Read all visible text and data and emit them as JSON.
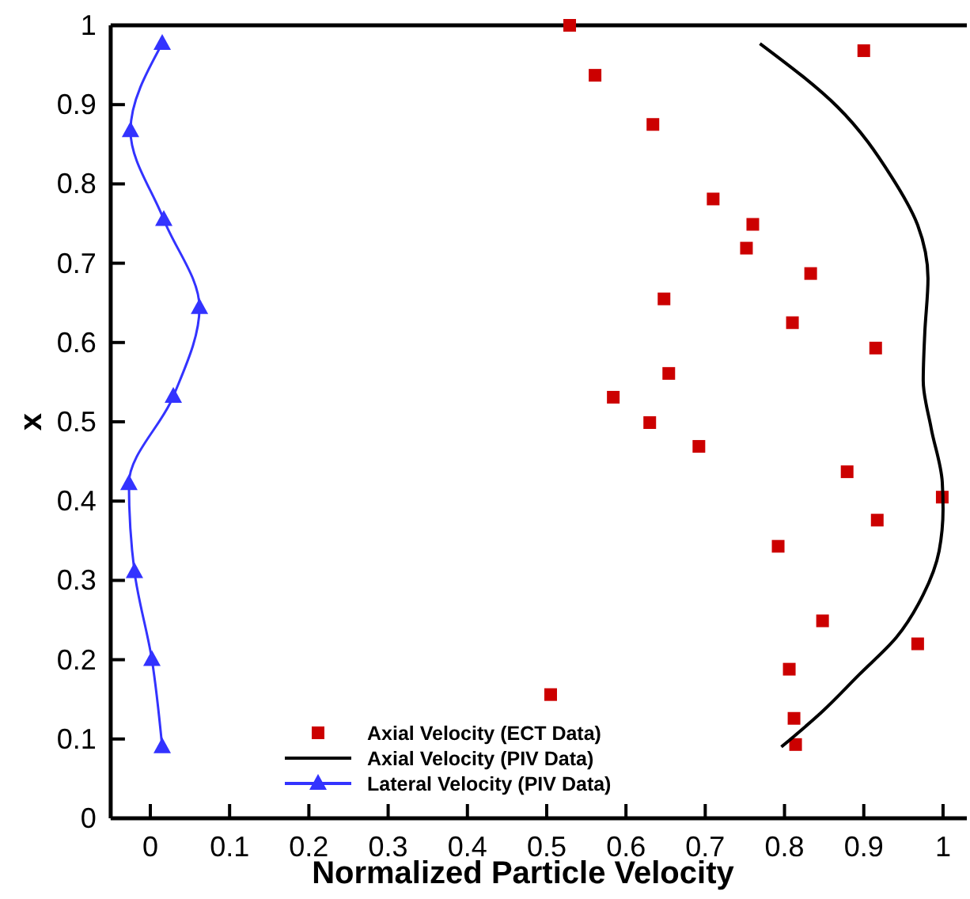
{
  "chart_data": {
    "type": "scatter",
    "xlabel": "Normalized Particle Velocity",
    "ylabel": "x",
    "xlim": [
      -0.05,
      1.03
    ],
    "ylim": [
      0,
      1
    ],
    "xticks": [
      0,
      0.1,
      0.2,
      0.3,
      0.4,
      0.5,
      0.6,
      0.7,
      0.8,
      0.9,
      1
    ],
    "yticks": [
      0,
      0.1,
      0.2,
      0.3,
      0.4,
      0.5,
      0.6,
      0.7,
      0.8,
      0.9,
      1
    ],
    "grid": false,
    "legend": "bottom",
    "series": [
      {
        "name": "Axial Velocity (ECT Data)",
        "marker": "square",
        "color": "#cc0000",
        "x": [
          0.529,
          0.561,
          0.634,
          0.71,
          0.76,
          0.752,
          0.833,
          0.648,
          0.81,
          0.915,
          0.654,
          0.584,
          0.63,
          0.692,
          0.879,
          0.999,
          0.917,
          0.792,
          0.848,
          0.968,
          0.806,
          0.505,
          0.812,
          0.814,
          0.9
        ],
        "values": [
          1.0,
          0.937,
          0.875,
          0.781,
          0.749,
          0.719,
          0.687,
          0.655,
          0.625,
          0.593,
          0.561,
          0.531,
          0.499,
          0.469,
          0.437,
          0.405,
          0.376,
          0.343,
          0.249,
          0.22,
          0.188,
          0.156,
          0.126,
          0.093,
          0.968
        ]
      },
      {
        "name": "Axial Velocity (PIV Data)",
        "type": "line",
        "marker": "none",
        "line_style": "solid",
        "color": "#000000",
        "x": [
          0.769,
          0.867,
          0.935,
          0.968,
          0.981,
          0.977,
          0.975,
          0.985,
          0.999,
          1.0,
          0.995,
          0.975,
          0.941,
          0.894,
          0.847,
          0.796
        ],
        "values": [
          0.977,
          0.897,
          0.809,
          0.748,
          0.681,
          0.613,
          0.552,
          0.492,
          0.424,
          0.39,
          0.337,
          0.282,
          0.228,
          0.181,
          0.134,
          0.09
        ]
      },
      {
        "name": "Lateral Velocity (PIV Data)",
        "type": "line",
        "marker": "triangle",
        "line_style": "solid",
        "color": "#3333ff",
        "x": [
          0.015,
          -0.025,
          0.017,
          0.062,
          0.029,
          -0.027,
          -0.02,
          0.002,
          0.015
        ],
        "values": [
          0.977,
          0.867,
          0.755,
          0.644,
          0.532,
          0.422,
          0.311,
          0.2,
          0.09
        ]
      }
    ]
  }
}
